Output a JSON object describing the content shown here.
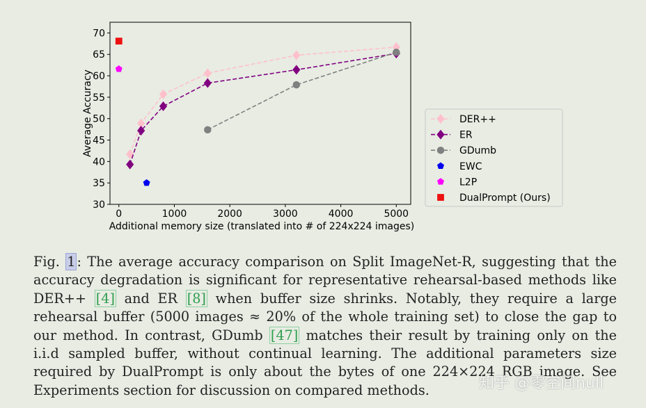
{
  "chart_data": {
    "type": "line",
    "xlabel": "Additional memory size (translated into # of 224x224 images)",
    "ylabel": "Average Accuracy",
    "xlim": [
      -160,
      5260
    ],
    "ylim": [
      30,
      72.5
    ],
    "xticks": [
      0,
      1000,
      2000,
      3000,
      4000,
      5000
    ],
    "yticks": [
      30,
      35,
      40,
      45,
      50,
      55,
      60,
      65,
      70
    ],
    "grid": false,
    "legend_position": "right",
    "series": [
      {
        "name": "DER++",
        "color": "#ffc0cb",
        "marker": "diamond",
        "line": "dashed",
        "x": [
          200,
          400,
          800,
          1600,
          3200,
          5000
        ],
        "y": [
          41.7,
          48.9,
          55.7,
          60.6,
          64.8,
          66.7
        ]
      },
      {
        "name": "ER",
        "color": "#800080",
        "marker": "diamond",
        "line": "dashed",
        "x": [
          200,
          400,
          800,
          1600,
          3200,
          5000
        ],
        "y": [
          39.3,
          47.2,
          52.9,
          58.3,
          61.4,
          65.2
        ]
      },
      {
        "name": "GDumb",
        "color": "#808080",
        "marker": "circle",
        "line": "dashed",
        "x": [
          1600,
          3200,
          5000
        ],
        "y": [
          47.4,
          57.9,
          65.5
        ]
      },
      {
        "name": "EWC",
        "color": "#0000ee",
        "marker": "pentagon",
        "line": "none",
        "x": [
          500
        ],
        "y": [
          35.0
        ]
      },
      {
        "name": "L2P",
        "color": "#ff00ff",
        "marker": "pentagon",
        "line": "none",
        "x": [
          0
        ],
        "y": [
          61.6
        ]
      },
      {
        "name": "DualPrompt (Ours)",
        "color": "#ee1111",
        "marker": "square",
        "line": "none",
        "x": [
          0
        ],
        "y": [
          68.1
        ]
      }
    ]
  },
  "caption": {
    "fig_prefix": "Fig.",
    "fig_number": "1",
    "part1": ": The average accuracy comparison on Split ImageNet-R, suggesting that the accuracy degradation is significant for representative rehearsal-based methods like DER++ ",
    "ref1": "[4]",
    "part2": " and ER ",
    "ref2": "[8]",
    "part3": " when buffer size shrinks. Notably, they require a large rehearsal buffer (5000 images ≈ 20% of the whole training set) to close the gap to our method. In contrast, GDumb ",
    "ref3": "[47]",
    "part4": " matches their result by training only on the i.i.d sampled buffer, without continual learning. The additional parameters size required by DualPrompt is only about the bytes of one 224×224 RGB image. See Experiments section for discussion on compared methods."
  },
  "watermark": "知乎 @零空间null"
}
